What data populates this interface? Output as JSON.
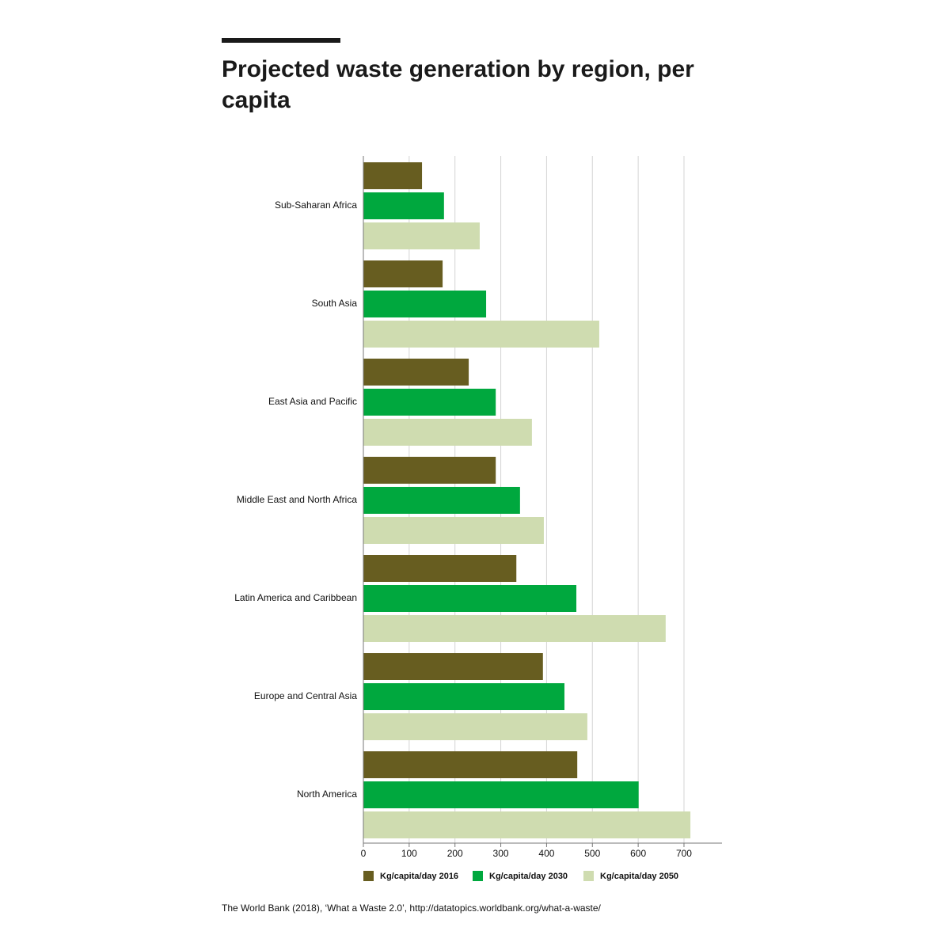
{
  "chart_data": {
    "type": "hbar",
    "title": "Projected waste generation by region, per capita",
    "source": "The World Bank (2018), ‘What a Waste 2.0’, http://datatopics.worldbank.org/what-a-waste/",
    "categories": [
      "Sub-Saharan Africa",
      "South Asia",
      "East Asia and Pacific",
      "Middle East and North Africa",
      "Latin America and Caribbean",
      "Europe and Central Asia",
      "North America"
    ],
    "series": [
      {
        "name": "Kg/capita/day 2016",
        "color": "#675d20",
        "values": [
          128,
          173,
          230,
          289,
          334,
          392,
          467
        ]
      },
      {
        "name": "Kg/capita/day 2030",
        "color": "#00a83e",
        "values": [
          176,
          268,
          289,
          342,
          465,
          439,
          601
        ]
      },
      {
        "name": "Kg/capita/day 2050",
        "color": "#cfdcb0",
        "values": [
          254,
          515,
          368,
          394,
          660,
          489,
          714
        ]
      }
    ],
    "xlim": [
      0,
      783
    ],
    "xticks": [
      0,
      100,
      200,
      300,
      400,
      500,
      600,
      700
    ],
    "grid": true
  }
}
